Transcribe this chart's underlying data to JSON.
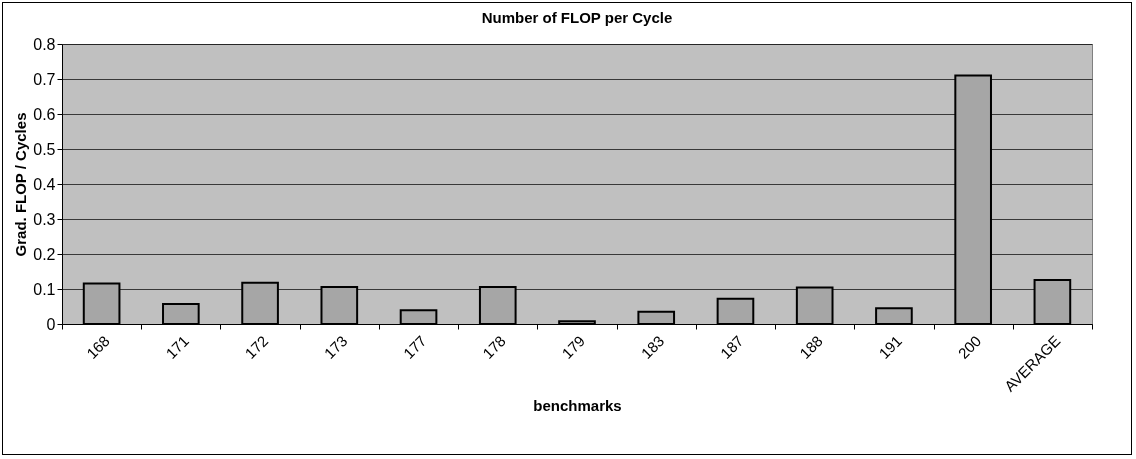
{
  "chart_data": {
    "type": "bar",
    "title": "Number of FLOP per Cycle",
    "xlabel": "benchmarks",
    "ylabel": "Grad. FLOP / Cycles",
    "categories": [
      "168",
      "171",
      "172",
      "173",
      "177",
      "178",
      "179",
      "183",
      "187",
      "188",
      "191",
      "200",
      "AVERAGE"
    ],
    "values": [
      0.116,
      0.057,
      0.118,
      0.106,
      0.039,
      0.106,
      0.008,
      0.035,
      0.072,
      0.104,
      0.045,
      0.71,
      0.126
    ],
    "color": "#a6a6a6",
    "ylim": [
      0,
      0.8
    ],
    "yticks": [
      0,
      0.1,
      0.2,
      0.3,
      0.4,
      0.5,
      0.6,
      0.7,
      0.8
    ],
    "grid": "y"
  }
}
